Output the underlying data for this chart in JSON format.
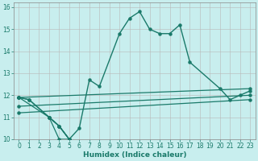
{
  "xlabel": "Humidex (Indice chaleur)",
  "bg_color": "#c8eeee",
  "line_color": "#1a7a6a",
  "xlim": [
    -0.5,
    23.5
  ],
  "ylim": [
    10,
    16.2
  ],
  "x_ticks": [
    0,
    1,
    2,
    3,
    4,
    5,
    6,
    7,
    8,
    9,
    10,
    11,
    12,
    13,
    14,
    15,
    16,
    17,
    18,
    19,
    20,
    21,
    22,
    23
  ],
  "y_ticks": [
    10,
    11,
    12,
    13,
    14,
    15,
    16
  ],
  "curve1": {
    "x": [
      0,
      1,
      3,
      4,
      5,
      6,
      7,
      8,
      10,
      11,
      12,
      13,
      14,
      15,
      16,
      17,
      20,
      21,
      22,
      23
    ],
    "y": [
      11.9,
      11.8,
      11.0,
      10.6,
      10.0,
      10.5,
      12.7,
      12.4,
      14.8,
      15.5,
      15.8,
      15.0,
      14.8,
      14.8,
      15.2,
      13.5,
      12.3,
      11.8,
      12.0,
      12.2
    ]
  },
  "curve2": {
    "x": [
      0,
      1,
      3,
      4,
      5,
      6,
      7,
      8,
      17,
      20,
      21,
      22,
      23
    ],
    "y": [
      11.9,
      11.8,
      11.0,
      10.6,
      10.0,
      10.5,
      12.7,
      12.4,
      13.5,
      12.3,
      11.8,
      12.0,
      12.2
    ]
  },
  "linear1": {
    "x": [
      0,
      23
    ],
    "y": [
      11.9,
      12.3
    ]
  },
  "linear2": {
    "x": [
      0,
      23
    ],
    "y": [
      11.5,
      12.0
    ]
  },
  "linear3": {
    "x": [
      0,
      23
    ],
    "y": [
      11.2,
      11.8
    ]
  },
  "zigzag": {
    "x": [
      0,
      3,
      4,
      5,
      4,
      3
    ],
    "y": [
      11.9,
      11.0,
      10.6,
      10.0,
      10.6,
      11.0
    ]
  },
  "zigzag2": {
    "x": [
      0,
      1,
      3,
      4,
      5
    ],
    "y": [
      11.9,
      11.8,
      11.0,
      10.0,
      10.0
    ]
  }
}
